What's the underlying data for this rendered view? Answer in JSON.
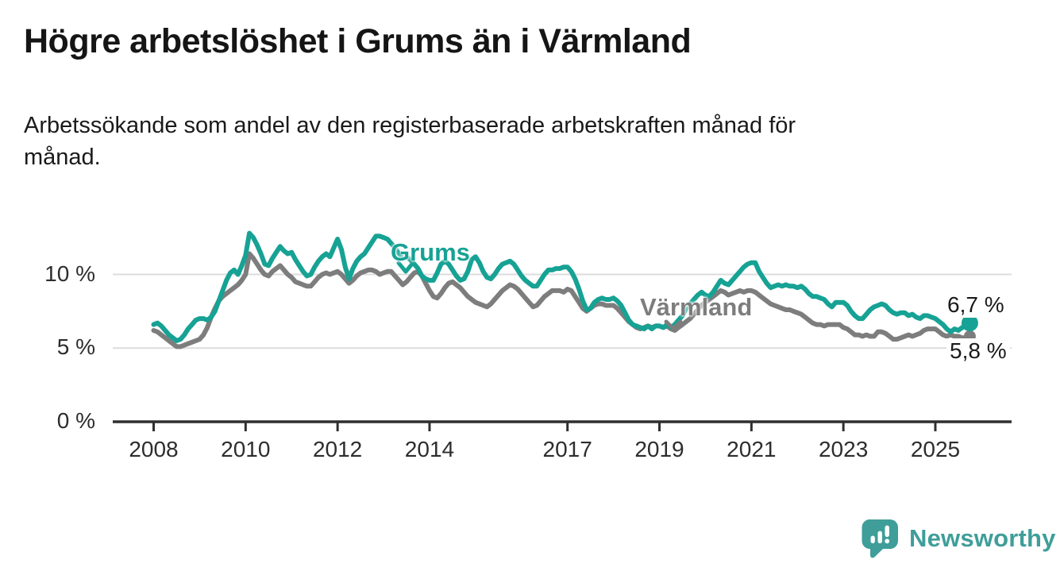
{
  "header": {
    "title": "Högre arbetslöshet i Grums än i Värmland",
    "subtitle_line1": "Arbetssökande som andel av den registerbaserade arbetskraften månad för",
    "subtitle_line2": "månad."
  },
  "branding": {
    "name": "Newsworthy",
    "icon": "bar-chart-speech-bubble"
  },
  "colors": {
    "grums": "#16a294",
    "varmland": "#7d7d7d",
    "grid": "#dcdcdc",
    "axis": "#2f2f2f",
    "tick_text": "#2d2d2d",
    "text": "#1a1a1a",
    "brand": "#3f9e99"
  },
  "chart_data": {
    "type": "line",
    "title": "Högre arbetslöshet i Grums än i Värmland",
    "subtitle": "Arbetssökande som andel av den registerbaserade arbetskraften månad för månad.",
    "unit": "%",
    "x_interval": "monthly",
    "x_start": "2008-01",
    "x_end": "2025-10",
    "x_ticks": [
      2008,
      2010,
      2012,
      2014,
      2017,
      2019,
      2021,
      2023,
      2025
    ],
    "y_ticks": [
      {
        "value": 0,
        "label": "0 %"
      },
      {
        "value": 5,
        "label": "5 %"
      },
      {
        "value": 10,
        "label": "10 %"
      }
    ],
    "ylim": [
      0,
      13.8
    ],
    "grid": "horizontal",
    "legend": "inline-labels",
    "series": [
      {
        "name": "Grums",
        "color": "#16a294",
        "end_value": 6.7,
        "end_value_label": "6,7 %",
        "values": [
          6.6,
          6.7,
          6.5,
          6.2,
          5.9,
          5.7,
          5.5,
          5.6,
          5.9,
          6.3,
          6.6,
          6.9,
          7.0,
          7.0,
          6.9,
          7.1,
          7.5,
          8.2,
          8.9,
          9.6,
          10.1,
          10.3,
          10.0,
          10.6,
          11.3,
          12.8,
          12.5,
          12.0,
          11.4,
          10.7,
          10.6,
          11.1,
          11.5,
          11.9,
          11.6,
          11.4,
          11.5,
          11.0,
          10.6,
          10.2,
          9.9,
          10.0,
          10.5,
          10.9,
          11.2,
          11.4,
          11.2,
          11.8,
          12.4,
          11.7,
          10.5,
          9.7,
          10.4,
          10.9,
          11.2,
          11.4,
          11.8,
          12.2,
          12.6,
          12.6,
          12.5,
          12.4,
          12.1,
          11.8,
          11.4,
          11.1,
          11.2,
          11.0,
          10.7,
          10.4,
          9.9,
          9.7,
          9.6,
          9.6,
          10.1,
          10.7,
          10.9,
          10.7,
          10.3,
          9.9,
          9.6,
          9.7,
          10.2,
          11.0,
          11.2,
          10.8,
          10.2,
          9.8,
          9.7,
          10.0,
          10.4,
          10.7,
          10.8,
          10.9,
          10.7,
          10.3,
          9.9,
          9.6,
          9.4,
          9.2,
          9.2,
          9.6,
          10.0,
          10.3,
          10.3,
          10.4,
          10.4,
          10.5,
          10.5,
          10.2,
          9.7,
          9.0,
          8.2,
          7.6,
          7.7,
          8.1,
          8.3,
          8.4,
          8.3,
          8.3,
          8.4,
          8.2,
          7.9,
          7.4,
          6.9,
          6.6,
          6.5,
          6.4,
          6.3,
          6.5,
          6.3,
          6.5,
          6.5,
          6.4,
          6.6,
          6.4,
          6.6,
          6.9,
          7.2,
          7.7,
          8.0,
          8.3,
          8.6,
          8.8,
          8.6,
          8.5,
          8.8,
          9.2,
          9.6,
          9.4,
          9.3,
          9.6,
          9.9,
          10.2,
          10.5,
          10.7,
          10.8,
          10.8,
          10.2,
          9.8,
          9.4,
          9.1,
          9.2,
          9.3,
          9.2,
          9.3,
          9.2,
          9.2,
          9.1,
          9.2,
          9.0,
          8.7,
          8.5,
          8.5,
          8.4,
          8.3,
          8.0,
          7.8,
          8.1,
          8.1,
          8.1,
          7.9,
          7.5,
          7.2,
          7.0,
          7.0,
          7.3,
          7.6,
          7.8,
          7.9,
          8.0,
          7.9,
          7.6,
          7.4,
          7.3,
          7.4,
          7.4,
          7.2,
          7.3,
          7.1,
          7.0,
          7.2,
          7.2,
          7.1,
          7.0,
          6.8,
          6.6,
          6.3,
          6.1,
          6.3,
          6.2,
          6.4,
          6.5,
          6.7
        ]
      },
      {
        "name": "Värmland",
        "color": "#7d7d7d",
        "end_value": 5.8,
        "end_value_label": "5,8 %",
        "values": [
          6.2,
          6.1,
          5.9,
          5.7,
          5.5,
          5.3,
          5.1,
          5.1,
          5.2,
          5.3,
          5.4,
          5.5,
          5.6,
          5.9,
          6.4,
          7.1,
          7.7,
          8.2,
          8.5,
          8.7,
          8.9,
          9.1,
          9.3,
          9.6,
          10.0,
          11.4,
          11.1,
          10.7,
          10.3,
          10.0,
          9.9,
          10.2,
          10.4,
          10.6,
          10.3,
          10.0,
          9.8,
          9.5,
          9.4,
          9.3,
          9.2,
          9.2,
          9.5,
          9.8,
          10.0,
          10.1,
          10.0,
          10.1,
          10.2,
          10.0,
          9.7,
          9.4,
          9.6,
          9.9,
          10.1,
          10.2,
          10.3,
          10.3,
          10.2,
          10.0,
          10.1,
          10.2,
          10.2,
          9.9,
          9.6,
          9.3,
          9.5,
          9.8,
          10.1,
          10.2,
          9.9,
          9.4,
          8.9,
          8.5,
          8.4,
          8.7,
          9.1,
          9.4,
          9.5,
          9.3,
          9.1,
          8.8,
          8.5,
          8.3,
          8.1,
          8.0,
          7.9,
          7.8,
          8.0,
          8.3,
          8.6,
          8.9,
          9.1,
          9.3,
          9.2,
          9.0,
          8.7,
          8.4,
          8.1,
          7.8,
          7.9,
          8.2,
          8.5,
          8.7,
          8.9,
          8.9,
          8.9,
          8.8,
          9.0,
          8.9,
          8.5,
          8.1,
          7.7,
          7.5,
          7.7,
          7.9,
          8.0,
          8.0,
          7.9,
          7.9,
          7.9,
          7.7,
          7.4,
          7.1,
          6.8,
          6.6,
          6.4,
          6.3,
          6.4,
          6.5,
          6.4,
          6.5,
          6.5,
          6.4,
          6.5,
          6.3,
          6.2,
          6.4,
          6.6,
          6.8,
          7.0,
          7.3,
          7.6,
          7.9,
          8.1,
          8.3,
          8.5,
          8.7,
          8.9,
          8.8,
          8.6,
          8.7,
          8.8,
          8.9,
          8.8,
          8.9,
          8.9,
          8.8,
          8.6,
          8.4,
          8.2,
          8.0,
          7.9,
          7.8,
          7.7,
          7.6,
          7.6,
          7.5,
          7.4,
          7.3,
          7.1,
          6.9,
          6.7,
          6.6,
          6.6,
          6.5,
          6.6,
          6.6,
          6.6,
          6.6,
          6.4,
          6.3,
          6.1,
          5.9,
          5.9,
          5.8,
          5.9,
          5.8,
          5.8,
          6.1,
          6.1,
          6.0,
          5.8,
          5.6,
          5.6,
          5.7,
          5.8,
          5.9,
          5.8,
          5.9,
          6.0,
          6.2,
          6.3,
          6.3,
          6.3,
          6.1,
          5.9,
          5.8,
          5.9,
          5.8,
          5.8,
          5.7,
          5.7,
          5.8
        ]
      }
    ]
  }
}
